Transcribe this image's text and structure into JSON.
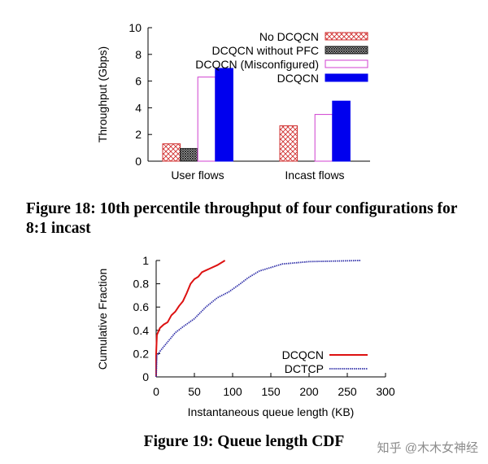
{
  "chart_data": [
    {
      "type": "bar",
      "categories": [
        "User flows",
        "Incast flows"
      ],
      "ylabel": "Throughput (Gbps)",
      "xlabel": "",
      "ylim": [
        0,
        10
      ],
      "yticks": [
        "0",
        "2",
        "4",
        "6",
        "8",
        "10"
      ],
      "legend_position": "top-right",
      "series": [
        {
          "name": "No DCQCN",
          "values": [
            1.3,
            2.65
          ],
          "color": "#d03030",
          "pattern": "crosshatch"
        },
        {
          "name": "DCQCN without PFC",
          "values": [
            0.95,
            null
          ],
          "color": "#222222",
          "pattern": "dense-hatch"
        },
        {
          "name": "DCQCN (Misconfigured)",
          "values": [
            6.3,
            3.5
          ],
          "color": "#d040d0",
          "pattern": "empty"
        },
        {
          "name": "DCQCN",
          "values": [
            6.95,
            4.5
          ],
          "color": "#0000ee",
          "pattern": "solid"
        }
      ]
    },
    {
      "type": "line",
      "xlabel": "Instantaneous queue length (KB)",
      "ylabel": "Cumulative Fraction",
      "xlim": [
        0,
        300
      ],
      "ylim": [
        0,
        1
      ],
      "xticks": [
        "0",
        "50",
        "100",
        "150",
        "200",
        "250",
        "300"
      ],
      "yticks": [
        "0",
        "0.2",
        "0.4",
        "0.6",
        "0.8",
        "1"
      ],
      "legend_position": "bottom-right",
      "series": [
        {
          "name": "DCQCN",
          "color": "#dd1111",
          "style": "solid",
          "x": [
            0,
            0,
            1,
            5,
            10,
            15,
            20,
            25,
            30,
            35,
            40,
            45,
            50,
            55,
            60,
            70,
            80,
            90
          ],
          "y": [
            0,
            0.2,
            0.36,
            0.42,
            0.45,
            0.47,
            0.53,
            0.56,
            0.61,
            0.65,
            0.72,
            0.8,
            0.84,
            0.86,
            0.9,
            0.93,
            0.96,
            1.0
          ]
        },
        {
          "name": "DCTCP",
          "color": "#3333aa",
          "style": "dotted",
          "x": [
            0,
            1,
            5,
            15,
            25,
            35,
            50,
            65,
            80,
            95,
            110,
            120,
            135,
            150,
            165,
            200,
            268
          ],
          "y": [
            0,
            0.18,
            0.22,
            0.3,
            0.38,
            0.43,
            0.5,
            0.6,
            0.68,
            0.73,
            0.8,
            0.85,
            0.91,
            0.94,
            0.97,
            0.99,
            1.0
          ]
        }
      ]
    }
  ],
  "captions": {
    "fig18": "Figure 18: 10th percentile throughput of four configurations for 8:1 incast",
    "fig19": "Figure 19: Queue length CDF"
  },
  "watermark": "知乎 @木木女神经"
}
